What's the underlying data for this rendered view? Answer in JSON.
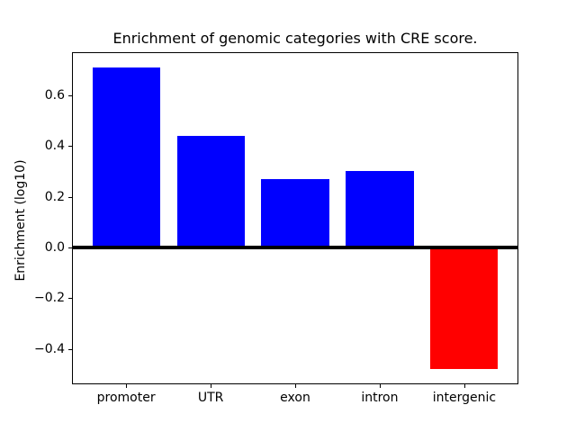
{
  "title": "Enrichment of genomic categories with CRE score.",
  "chart_data": {
    "type": "bar",
    "title": "Enrichment of genomic categories with CRE score.",
    "categories": [
      "promoter",
      "UTR",
      "exon",
      "intron",
      "intergenic"
    ],
    "values": [
      0.71,
      0.44,
      0.27,
      0.3,
      -0.48
    ],
    "bar_colors": [
      "#0000ff",
      "#0000ff",
      "#0000ff",
      "#0000ff",
      "#ff0000"
    ],
    "positive_color": "#0000ff",
    "negative_color": "#ff0000",
    "xlabel": "",
    "ylabel": "Enrichment (log10)",
    "ylim": [
      -0.54,
      0.77
    ],
    "xlim": [
      -0.64,
      4.64
    ],
    "bar_width": 0.8,
    "yticks": [
      0.6,
      0.4,
      0.2,
      0.0,
      -0.2,
      -0.4
    ],
    "ytick_labels": [
      "0.6",
      "0.4",
      "0.2",
      "0.0",
      "−0.2",
      "−0.4"
    ],
    "zero_line": true,
    "zero_line_color": "#000000",
    "grid": false,
    "legend": null,
    "background_color": "#ffffff",
    "spine_color": "#000000"
  }
}
